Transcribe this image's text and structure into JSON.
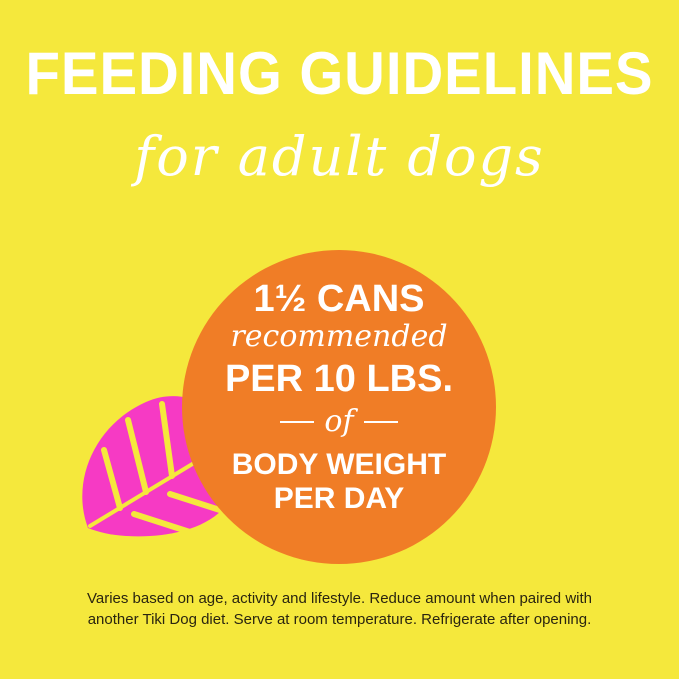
{
  "headline": {
    "title": "FEEDING GUIDELINES",
    "subtitle": "for adult dogs"
  },
  "badge": {
    "amount": "1½ CANS",
    "recommended": "recommended",
    "rate": "PER 10 LBS.",
    "connector": "of",
    "measure_line1": "BODY WEIGHT",
    "measure_line2": "PER DAY"
  },
  "decor": {
    "leaf_icon": "monstera-leaf-icon",
    "leaf_color": "#f63ac4",
    "circle_color": "#f07d26",
    "background_color": "#f5e83c"
  },
  "footnote": {
    "line1": "Varies based on age, activity and lifestyle. Reduce amount when paired with",
    "line2": "another Tiki Dog diet. Serve at room temperature. Refrigerate after opening."
  }
}
